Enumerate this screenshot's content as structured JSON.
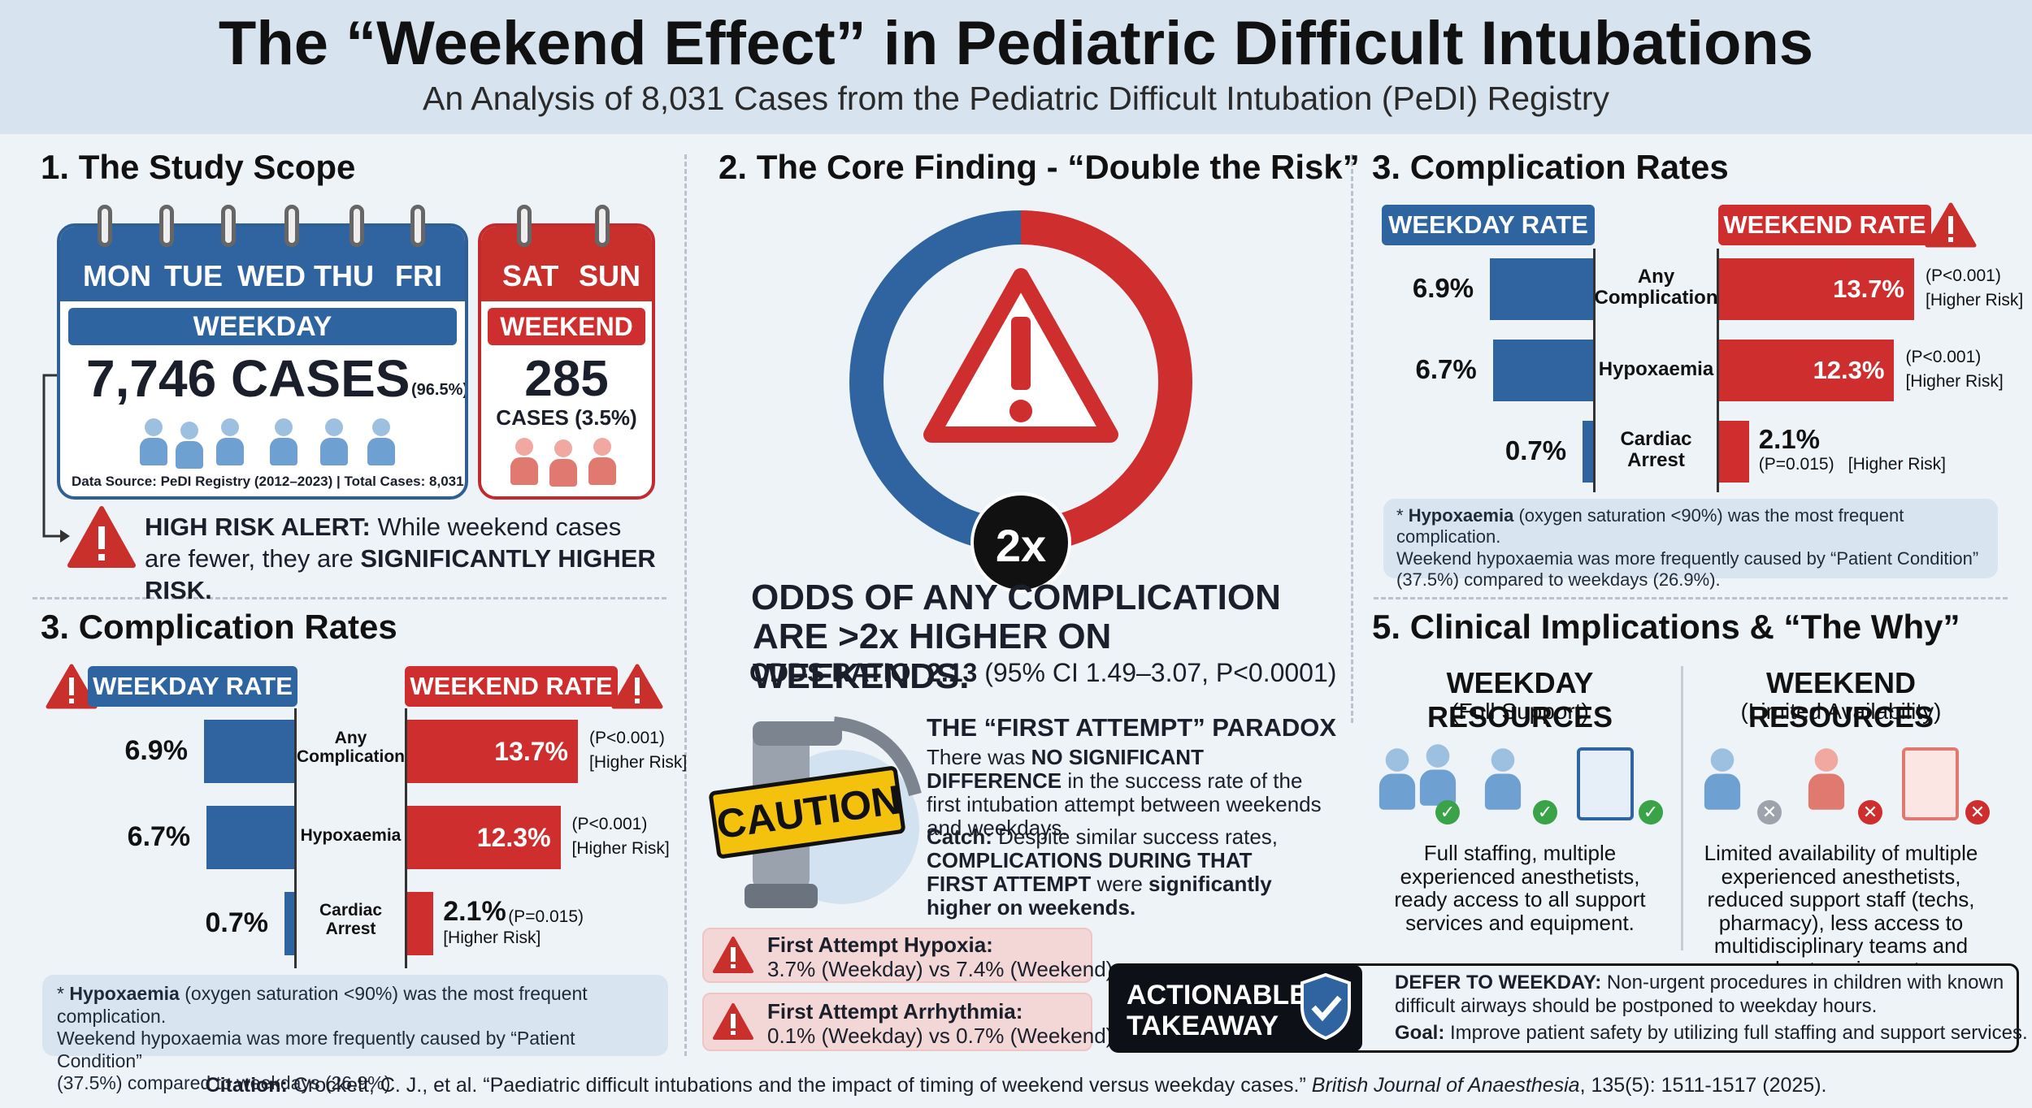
{
  "header": {
    "title": "The “Weekend Effect” in Pediatric Difficult Intubations",
    "subtitle": "An Analysis of 8,031 Cases from the Pediatric Difficult Intubation (PeDI) Registry"
  },
  "scope": {
    "heading": "1. The Study Scope",
    "weekday_days": [
      "MON",
      "TUE",
      "WED",
      "THU",
      "FRI"
    ],
    "weekend_days": [
      "SAT",
      "SUN"
    ],
    "weekday_label": "WEEKDAY",
    "weekday_cases": "7,746 CASES",
    "weekday_pct": "(96.5%)",
    "weekend_label": "WEEKEND",
    "weekend_cases": "285",
    "weekend_cases_sub": "CASES (3.5%)",
    "data_source": "Data Source: PeDI Registry (2012–2023) | Total Cases: 8,031",
    "alert_bold": "HIGH RISK ALERT:",
    "alert_text": "While weekend cases are fewer, they are",
    "alert_bold2": "SIGNIFICANTLY HIGHER RISK."
  },
  "core": {
    "heading": "2. The Core Finding - “Double the Risk”",
    "badge": "2x",
    "line1": "ODDS OF ANY COMPLICATION",
    "line2": "ARE >2x HIGHER ON WEEKENDS.",
    "or_bold": "ODDS RATIO: 2.13",
    "or_rest": "(95% CI 1.49–3.07, P<0.0001)",
    "caution": "CAUTION",
    "paradox_title": "THE “FIRST ATTEMPT” PARADOX",
    "p1a": "There was",
    "p1b": "NO SIGNIFICANT DIFFERENCE",
    "p1c": "in the success rate of the first intubation attempt between weekends and weekdays.",
    "p2a": "Catch:",
    "p2b": "Despite similar success rates,",
    "p2c": "COMPLICATIONS DURING THAT FIRST ATTEMPT",
    "p2d": "were",
    "p2e": "significantly higher on weekends.",
    "hyp_title": "First Attempt Hypoxia:",
    "hyp_text": "3.7% (Weekday) vs 7.4% (Weekend)",
    "arr_title": "First Attempt Arrhythmia:",
    "arr_text": "0.1% (Weekday) vs 0.7% (Weekend)"
  },
  "comp": {
    "heading": "3. Complication Rates",
    "weekday_rate": "WEEKDAY RATE",
    "weekend_rate": "WEEKEND RATE",
    "rows": [
      {
        "cat": "Any Complication",
        "weekday": "6.9%",
        "weekend": "13.7%",
        "p": "(P<0.001)",
        "risk": "[Higher Risk]",
        "wd_val": 6.9,
        "we_val": 13.7
      },
      {
        "cat": "Hypoxaemia",
        "weekday": "6.7%",
        "weekend": "12.3%",
        "p": "(P<0.001)",
        "risk": "[Higher Risk]",
        "wd_val": 6.7,
        "we_val": 12.3
      },
      {
        "cat": "Cardiac Arrest",
        "weekday": "0.7%",
        "weekend": "2.1%",
        "p": "(P=0.015)",
        "risk": "[Higher Risk]",
        "wd_val": 0.7,
        "we_val": 2.1
      }
    ],
    "note_bold": "Hypoxaemia",
    "note_a": "* ",
    "note_b": "(oxygen saturation <90%) was the most frequent complication.",
    "note_c": "Weekend hypoxaemia was more frequently caused by “Patient Condition”",
    "note_d": "(37.5%) compared to weekdays (26.9%)."
  },
  "clinical": {
    "heading": "5. Clinical Implications & “The Why”",
    "wd_title": "WEEKDAY RESOURCES",
    "wd_sub": "(Full Support)",
    "wd_text": "Full staffing, multiple experienced anesthetists, ready access to all support services and equipment.",
    "we_title": "WEEKEND RESOURCES",
    "we_sub": "(Limited Availability)",
    "we_text": "Limited availability of multiple experienced anesthetists, reduced support staff (techs, pharmacy), less access to multidisciplinary teams and robust equipment."
  },
  "takeaway": {
    "label1": "ACTIONABLE",
    "label2": "TAKEAWAY",
    "defer_bold": "DEFER TO WEEKDAY:",
    "defer_text": "Non-urgent procedures in children with known difficult airways should be postponed to weekday hours.",
    "goal_bold": "Goal:",
    "goal_text": "Improve patient safety by utilizing full staffing and support services."
  },
  "citation": {
    "bold": "Citation:",
    "text": "Crockett, C. J., et al. “Paediatric difficult intubations and the impact of timing of weekend versus weekday cases.”",
    "journal": "British Journal of Anaesthesia",
    "rest": ", 135(5): 1511-1517 (2025)."
  },
  "colors": {
    "blue": "#2f64a0",
    "red": "#cf2e2e"
  }
}
